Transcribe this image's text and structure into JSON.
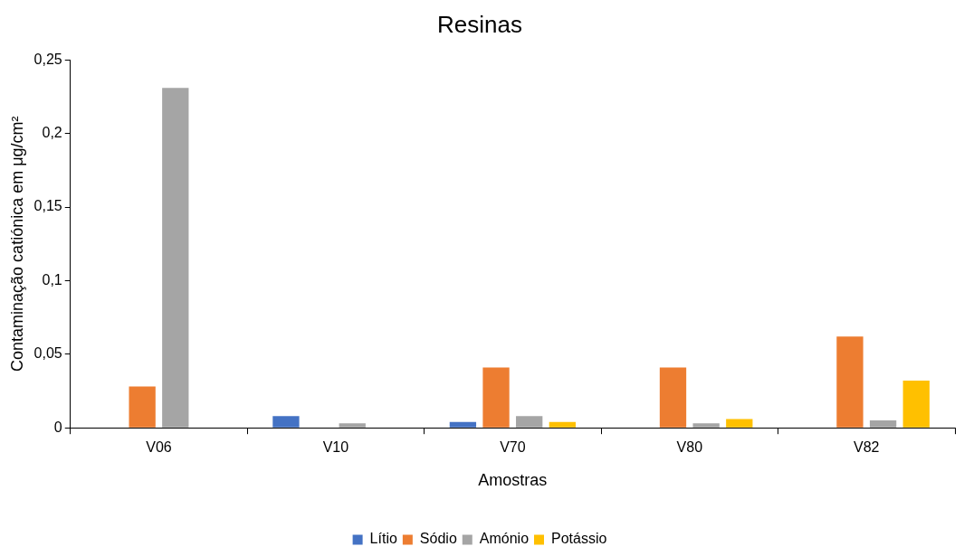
{
  "chart_data": {
    "type": "bar",
    "title": "Resinas",
    "xlabel": "Amostras",
    "ylabel": "Contaminação catiónica em μg/cm²",
    "categories": [
      "V06",
      "V10",
      "V70",
      "V80",
      "V82"
    ],
    "series": [
      {
        "name": "Lítio",
        "color": "#4472c4",
        "values": [
          null,
          0.008,
          0.004,
          null,
          null
        ]
      },
      {
        "name": "Sódio",
        "color": "#ed7d31",
        "values": [
          0.028,
          null,
          0.041,
          0.041,
          0.062
        ]
      },
      {
        "name": "Amónio",
        "color": "#a5a5a5",
        "values": [
          0.231,
          0.003,
          0.008,
          0.003,
          0.005
        ]
      },
      {
        "name": "Potássio",
        "color": "#ffc000",
        "values": [
          null,
          null,
          0.004,
          0.006,
          0.032
        ]
      }
    ],
    "ylim": [
      0,
      0.25
    ],
    "yticks": [
      0,
      {
        "value": 0.05,
        "label": "0,05"
      },
      {
        "value": 0.1,
        "label": "0,1"
      },
      {
        "value": 0.15,
        "label": "0,15"
      },
      {
        "value": 0.2,
        "label": "0,2"
      },
      {
        "value": 0.25,
        "label": "0,25"
      }
    ],
    "grid": false,
    "legend": "bottom"
  }
}
